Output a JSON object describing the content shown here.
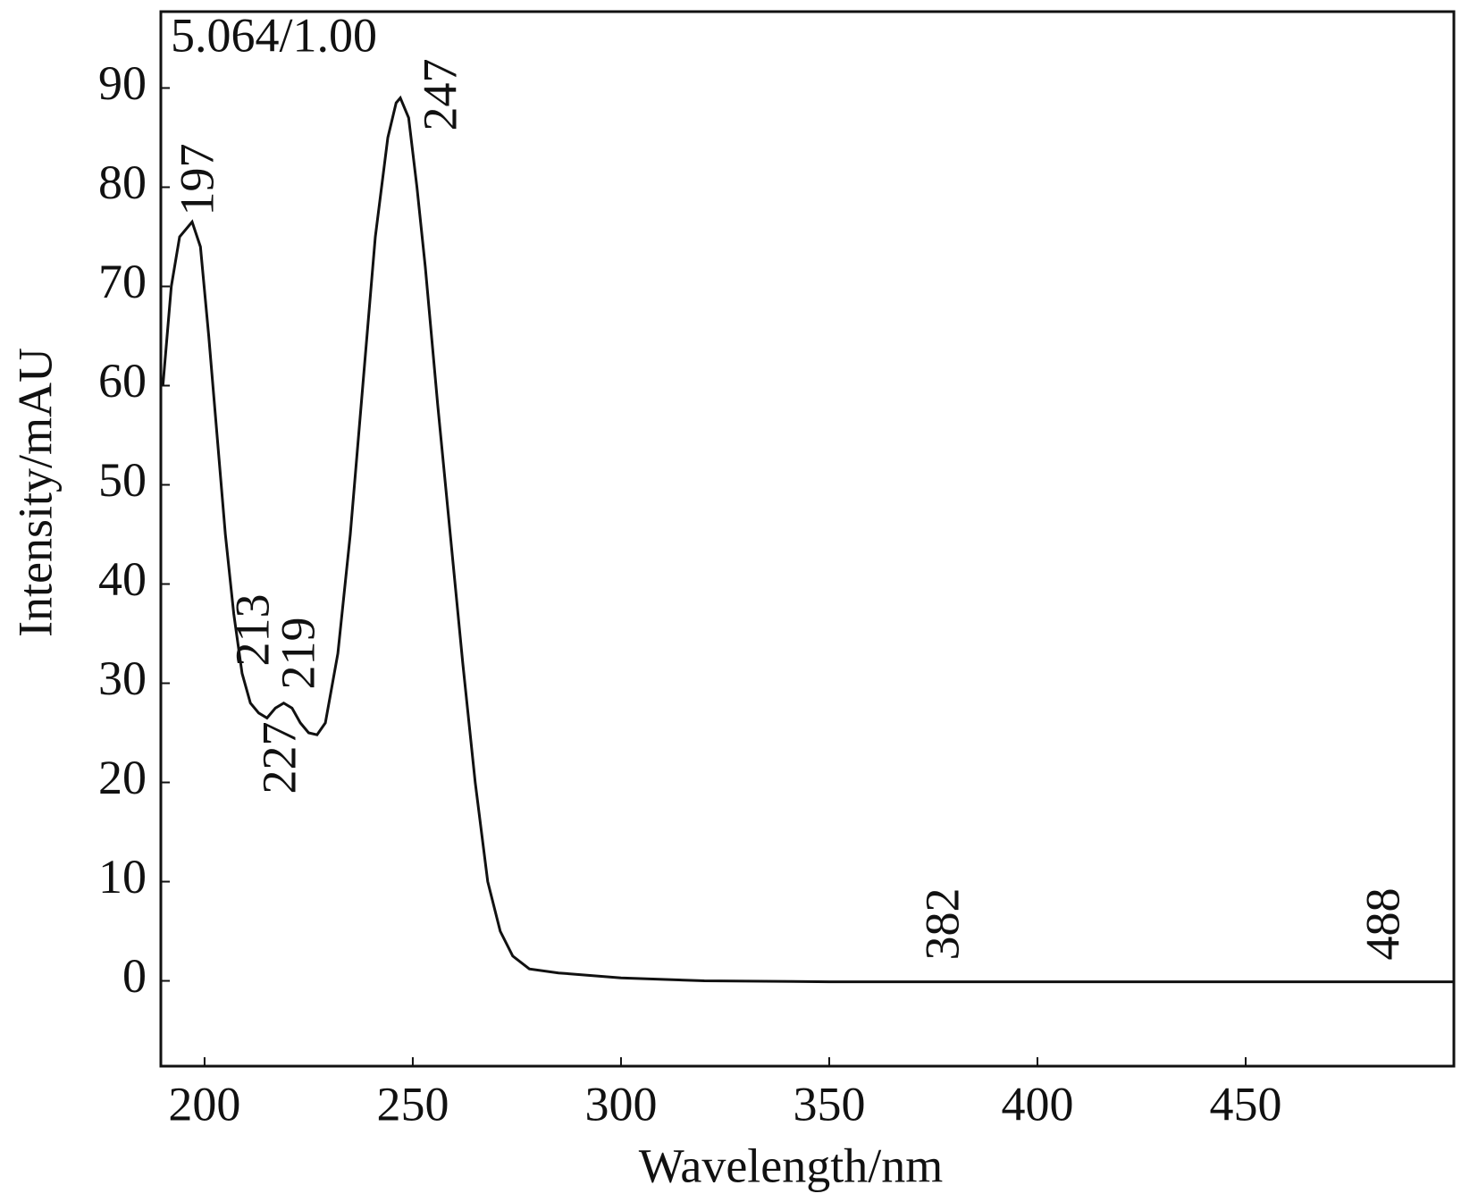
{
  "chart_data": {
    "type": "line",
    "annotation": "5.064/1.00",
    "x_label": "Wavelength/nm",
    "y_label": "Intensity/mAU",
    "x": [
      190,
      192,
      194,
      197,
      199,
      201,
      203,
      205,
      207,
      209,
      211,
      213,
      215,
      217,
      219,
      221,
      223,
      225,
      227,
      229,
      232,
      235,
      238,
      241,
      244,
      246,
      247,
      249,
      251,
      253,
      256,
      259,
      262,
      265,
      268,
      271,
      274,
      278,
      285,
      300,
      320,
      350,
      382,
      420,
      488,
      500
    ],
    "values": [
      60,
      70,
      75,
      76.5,
      74,
      65,
      55,
      45,
      37,
      31,
      28,
      27,
      26.5,
      27.5,
      28,
      27.5,
      26,
      25,
      24.8,
      26,
      33,
      45,
      60,
      75,
      85,
      88.5,
      89,
      87,
      80,
      72,
      58,
      45,
      32,
      20,
      10,
      5,
      2.5,
      1.2,
      0.8,
      0.3,
      0,
      -0.1,
      -0.1,
      -0.1,
      -0.1,
      -0.1
    ],
    "color": "#111111",
    "peaks": [
      197,
      247,
      213,
      219,
      227,
      382,
      488
    ],
    "xlim": [
      189.5,
      500
    ],
    "xticks": [
      200,
      250,
      300,
      350,
      400,
      450
    ],
    "ylim": [
      -8.6,
      97.7
    ],
    "yticks": [
      0,
      10,
      20,
      30,
      40,
      50,
      60,
      70,
      80,
      90
    ],
    "grid": false
  }
}
